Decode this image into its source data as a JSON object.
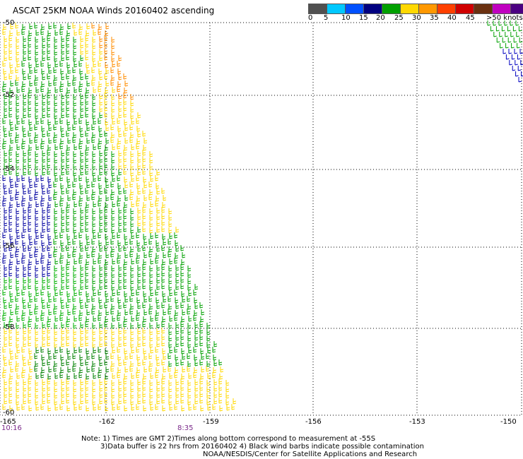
{
  "header": {
    "title": "ASCAT 25KM NOAA Winds 20160402 ascending"
  },
  "legend": {
    "labels": [
      "0",
      "5",
      "10",
      "15",
      "20",
      "25",
      "30",
      "35",
      "40",
      "45",
      ">50 knots"
    ],
    "colors": [
      "#555555",
      "#9a9a9a",
      "#00d8ff",
      "#0060ff",
      "#0000d0",
      "#00a000",
      "#ffd800",
      "#ffb000",
      "#ff7000",
      "#ff2020",
      "#b00000",
      "#6a3010",
      "#c000c0",
      "#ff40ff",
      "#6000a0"
    ]
  },
  "axes": {
    "lat_labels": [
      "-50",
      "-52",
      "-54",
      "-56",
      "-58",
      "-60"
    ],
    "lon_labels": [
      "-165",
      "-162",
      "-159",
      "-156",
      "-153",
      "-150"
    ]
  },
  "times": {
    "left": "10:16",
    "right": "8:35"
  },
  "notes": {
    "line1": "Note: 1) Times are GMT 2)Times along bottom correspond to measurement at -55S",
    "line2": "3)Data buffer is 22 hrs from 20160402 4) Black wind barbs indicate possible contamination",
    "line3": "NOAA/NESDIS/Center for Satellite Applications and Research"
  },
  "chart_data": {
    "type": "map",
    "projection": "lat-lon",
    "lat_range": [
      -60,
      -50
    ],
    "lon_range": [
      -165,
      -150
    ],
    "grid": "dotted",
    "units": "knots"
  }
}
